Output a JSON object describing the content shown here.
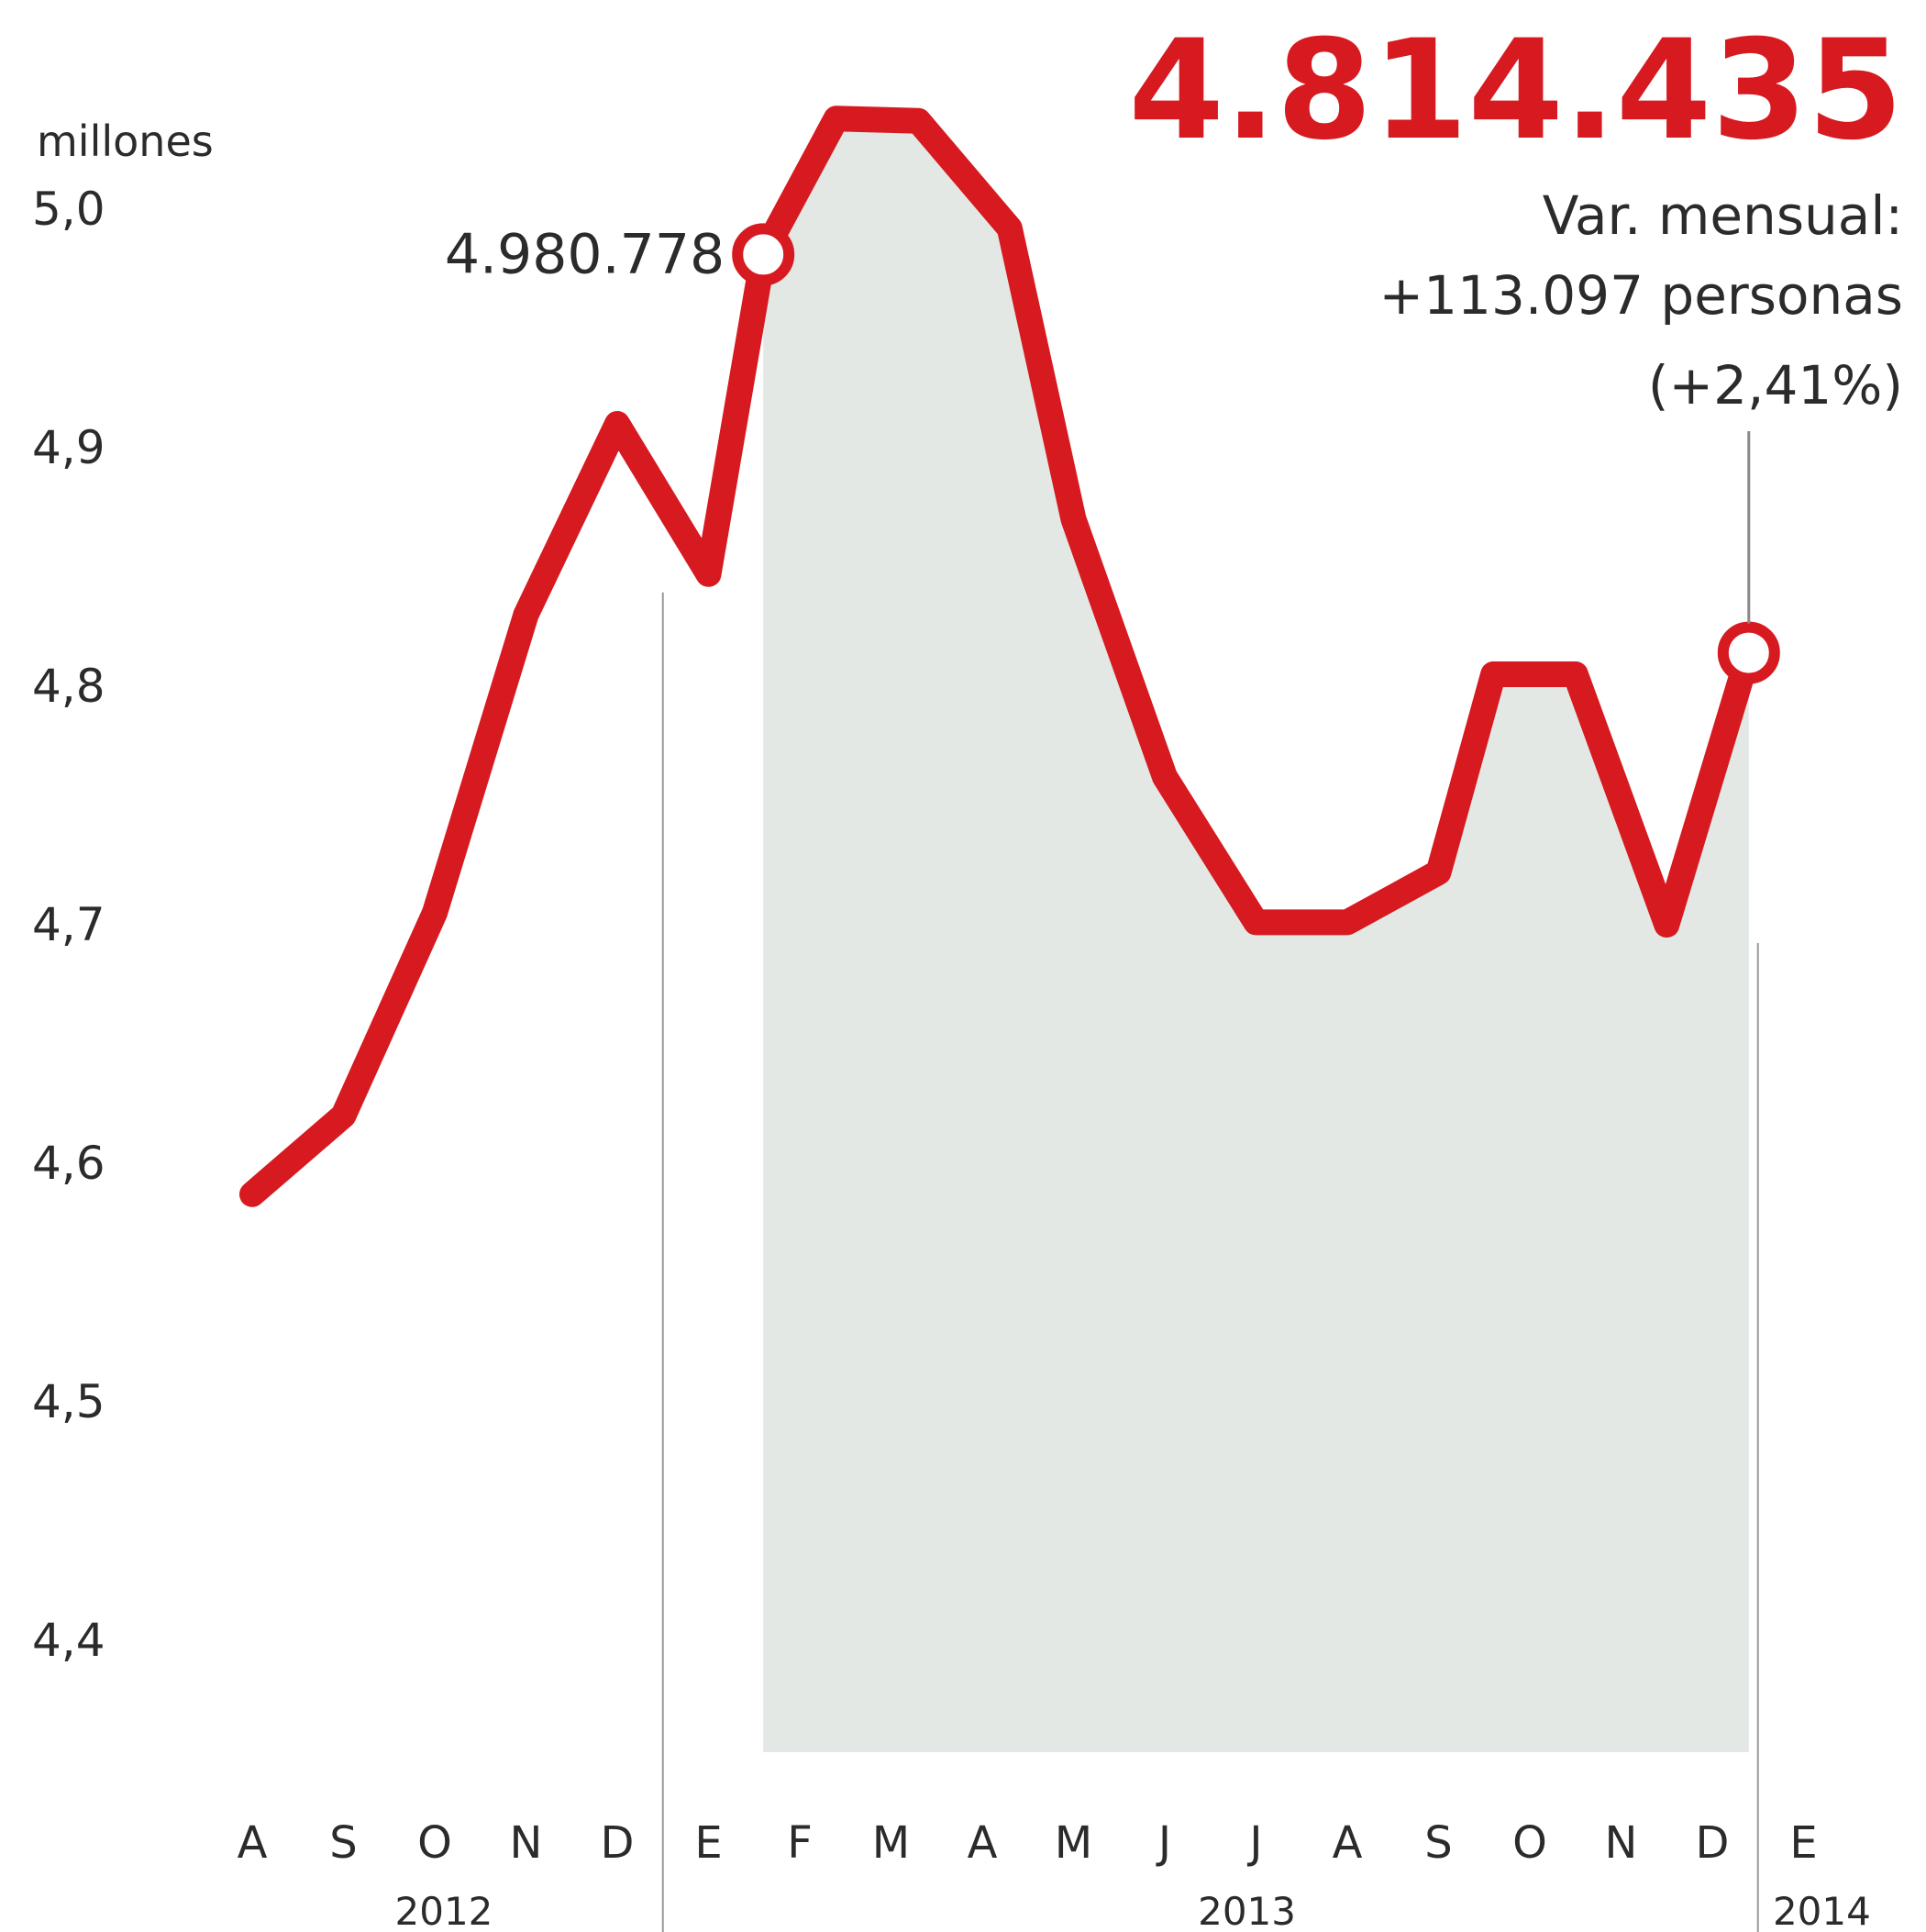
{
  "headline": "4.814.435",
  "variation": {
    "line1": "Var. mensual:",
    "line2": "+113.097 personas",
    "line3": "(+2,41%)"
  },
  "peak_label": "4.980.778",
  "colors": {
    "line": "#d71920",
    "area": "#e3e8e5",
    "text": "#2b2b2b"
  },
  "chart_data": {
    "type": "line",
    "unit_label": "millones",
    "y_ticks": [
      "5,0",
      "4,9",
      "4,8",
      "4,7",
      "4,6",
      "4,5",
      "4,4"
    ],
    "y_tick_values": [
      5.0,
      4.9,
      4.8,
      4.7,
      4.6,
      4.5,
      4.4
    ],
    "ylim": [
      4.35,
      5.04
    ],
    "x_labels": [
      "A",
      "S",
      "O",
      "N",
      "D",
      "E",
      "F",
      "M",
      "A",
      "M",
      "J",
      "J",
      "A",
      "S",
      "O",
      "N",
      "D",
      "E"
    ],
    "years": [
      "2012",
      "2013",
      "2014"
    ],
    "points": [
      {
        "x": 0,
        "y": 4.587
      },
      {
        "x": 1,
        "y": 4.62
      },
      {
        "x": 2,
        "y": 4.705
      },
      {
        "x": 3,
        "y": 4.83
      },
      {
        "x": 4,
        "y": 4.91
      },
      {
        "x": 5,
        "y": 4.847
      },
      {
        "x": 5.6,
        "y": 4.981
      },
      {
        "x": 6.4,
        "y": 5.038
      },
      {
        "x": 7.3,
        "y": 5.037
      },
      {
        "x": 8.3,
        "y": 4.992
      },
      {
        "x": 9,
        "y": 4.87
      },
      {
        "x": 10,
        "y": 4.762
      },
      {
        "x": 11,
        "y": 4.701
      },
      {
        "x": 12,
        "y": 4.701
      },
      {
        "x": 13,
        "y": 4.722
      },
      {
        "x": 13.6,
        "y": 4.805
      },
      {
        "x": 14.5,
        "y": 4.805
      },
      {
        "x": 15.5,
        "y": 4.7
      },
      {
        "x": 16.4,
        "y": 4.814
      }
    ],
    "highlight": [
      {
        "x": 5.6,
        "y": 4.981,
        "label": "4.980.778"
      },
      {
        "x": 16.4,
        "y": 4.814,
        "label": "4.814.435"
      }
    ],
    "shaded_range": [
      5.6,
      16.4
    ],
    "grid": false
  }
}
